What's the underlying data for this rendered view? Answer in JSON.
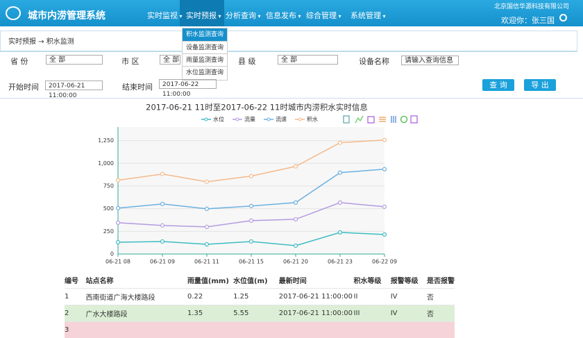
{
  "header": {
    "logo_text": "城市内涝管理系统",
    "nav": [
      "实时监视",
      "实时预报",
      "分析查询",
      "信息发布",
      "综合管理",
      "系统管理"
    ],
    "company": "北京国信华源科技有限公司",
    "user": "欢迎你：张三国"
  },
  "dropdown": [
    "积水监测查询",
    "设备监测查询",
    "雨量监测查询",
    "水位监测查询"
  ],
  "breadcrumb": "实时预报 → 积水监测",
  "filters": {
    "province_label": "省 份",
    "province_value": "全 部",
    "city_label": "市 区",
    "city_value": "全 部",
    "county_label": "县 级",
    "county_value": "全 部",
    "device_label": "设备名称",
    "device_placeholder": "请输入查询信息",
    "start_label": "开始时间",
    "start_value": "2017-06-21 11:00:00",
    "end_label": "结束时间",
    "end_value": "2017-06-22 11:00:00",
    "query_button": "查 询",
    "export_button": "导 出"
  },
  "chart_data": {
    "type": "line",
    "title": "2017-06-21 11时至2017-06-22 11时城市内涝积水实时信息",
    "categories": [
      "06-21 08",
      "06-21 09",
      "06-21 11",
      "06-21 15",
      "06-21 20",
      "06-21 23",
      "06-22 09"
    ],
    "series": [
      {
        "name": "水位",
        "color": "#3cbcc0",
        "values": [
          130,
          138,
          107,
          138,
          92,
          238,
          215
        ]
      },
      {
        "name": "流量",
        "color": "#b49be0",
        "values": [
          345,
          315,
          299,
          368,
          383,
          567,
          521
        ]
      },
      {
        "name": "流速",
        "color": "#6ab0e0",
        "values": [
          506,
          552,
          498,
          529,
          567,
          897,
          935
        ]
      },
      {
        "name": "积水",
        "color": "#f5b98a",
        "values": [
          813,
          882,
          797,
          859,
          966,
          1227,
          1257
        ]
      }
    ],
    "ylim": [
      0,
      1400
    ],
    "yticks": [
      0,
      250,
      500,
      750,
      {
        "value": 1000,
        "label": "1,000"
      },
      {
        "value": 1250,
        "label": "1,250"
      }
    ],
    "grid": true,
    "legend": "top"
  },
  "table": {
    "columns": [
      "编号",
      "站点名称",
      "雨量值(mm)",
      "水位值(m)",
      "最新时间",
      "积水等级",
      "报警等级",
      "是否报警"
    ],
    "rows": [
      [
        "1",
        "西南街道广海大楼路段",
        "0.22",
        "1.25",
        "2017-06-21 11:00:00",
        "II",
        "IV",
        "否"
      ],
      [
        "2",
        "广水大楼路段",
        "1.35",
        "5.55",
        "2017-06-21 11:00:00",
        "III",
        "IV",
        "否"
      ],
      [
        "3"
      ]
    ]
  }
}
